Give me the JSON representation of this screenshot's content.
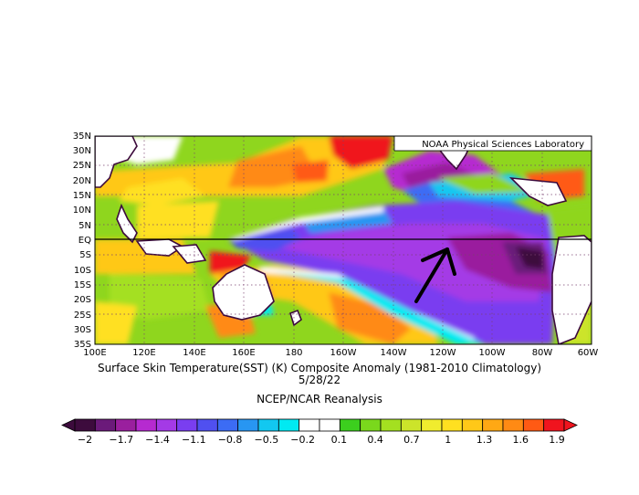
{
  "figure": {
    "lab_label": "NOAA Physical Sciences Laboratory",
    "title_line1": "Surface Skin Temperature(SST) (K) Composite Anomaly (1981-2010 Climatology)",
    "title_line2": "5/28/22",
    "source": "NCEP/NCAR Reanalysis"
  },
  "map": {
    "lon_ticks": [
      "100E",
      "120E",
      "140E",
      "160E",
      "180",
      "160W",
      "140W",
      "120W",
      "100W",
      "80W",
      "60W"
    ],
    "lat_ticks": [
      "35N",
      "30N",
      "25N",
      "20N",
      "15N",
      "10N",
      "5N",
      "EQ",
      "5S",
      "10S",
      "15S",
      "20S",
      "25S",
      "30S",
      "35S"
    ],
    "arrow": "pointer-to-equatorial-pacific",
    "colors": {
      "land_outline": "#3c0a3c",
      "frame": "#000000"
    }
  },
  "colorbar": {
    "labels": [
      "-2",
      "-1.7",
      "-1.4",
      "-1.1",
      "-0.8",
      "-0.5",
      "-0.2",
      "0.1",
      "0.4",
      "0.7",
      "1",
      "1.3",
      "1.6",
      "1.9"
    ],
    "colors": [
      "#3d0b3d",
      "#6b1a7a",
      "#9a1f9e",
      "#b62ad0",
      "#a43ae6",
      "#7a3ef0",
      "#5050f0",
      "#3c6cf4",
      "#2896f2",
      "#12c8f0",
      "#00eaf2",
      "#ffffff",
      "#ffffff",
      "#3ccf1e",
      "#7ad81c",
      "#a4e020",
      "#cce42a",
      "#f0ec2e",
      "#ffe020",
      "#ffc818",
      "#ffa814",
      "#ff8a14",
      "#ff5a14",
      "#f0141e"
    ]
  }
}
